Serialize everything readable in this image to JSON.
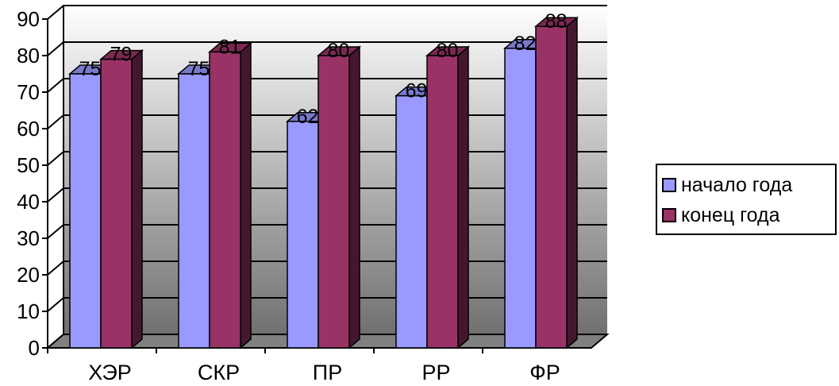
{
  "chart_data": {
    "type": "bar",
    "categories": [
      "ХЭР",
      "СКР",
      "ПР",
      "РР",
      "ФР"
    ],
    "series": [
      {
        "name": "начало года",
        "values": [
          75,
          75,
          62,
          69,
          82
        ],
        "color": "#9999ff"
      },
      {
        "name": "конец года",
        "values": [
          79,
          81,
          80,
          80,
          88
        ],
        "color": "#993366"
      }
    ],
    "yticks": [
      "0",
      "10",
      "20",
      "30",
      "40",
      "50",
      "60",
      "70",
      "80",
      "90"
    ],
    "ylim": [
      0,
      90
    ],
    "grid": true,
    "legend": "right",
    "background_gradient": [
      "#ffffff",
      "#707070"
    ],
    "title": "",
    "xlabel": "",
    "ylabel": ""
  }
}
